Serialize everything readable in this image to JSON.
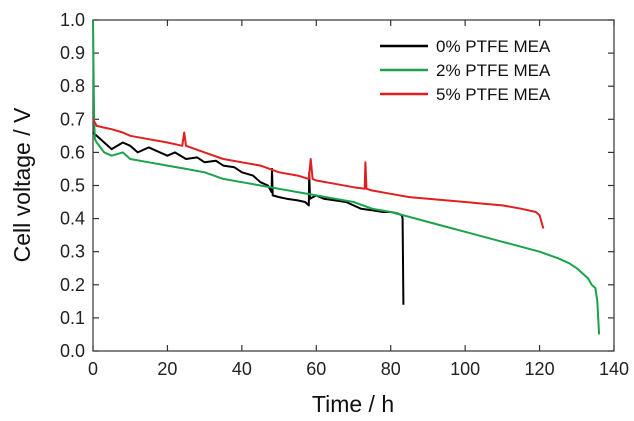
{
  "chart_data": {
    "type": "line",
    "xlabel": "Time / h",
    "ylabel": "Cell voltage / V",
    "xlim": [
      0,
      140
    ],
    "ylim": [
      0.0,
      1.0
    ],
    "x_ticks": [
      "0",
      "20",
      "40",
      "60",
      "80",
      "100",
      "120",
      "140"
    ],
    "y_ticks": [
      "0.0",
      "0.1",
      "0.2",
      "0.3",
      "0.4",
      "0.5",
      "0.6",
      "0.7",
      "0.8",
      "0.9",
      "1.0"
    ],
    "grid": false,
    "legend_position": "top-right",
    "series": [
      {
        "name": "0% PTFE MEA",
        "color": "#000000",
        "x": [
          0,
          1,
          3,
          5,
          8,
          10,
          12,
          15,
          18,
          20,
          22,
          25,
          28,
          30,
          33,
          35,
          38,
          40,
          43,
          45,
          47,
          48,
          48.1,
          48.3,
          50,
          52,
          55,
          57,
          58,
          58.1,
          58.3,
          60,
          62,
          65,
          68,
          70,
          72,
          75,
          78,
          80,
          82,
          83,
          83.2,
          83.4
        ],
        "y": [
          0.66,
          0.65,
          0.63,
          0.61,
          0.63,
          0.62,
          0.6,
          0.615,
          0.6,
          0.59,
          0.6,
          0.58,
          0.585,
          0.57,
          0.575,
          0.56,
          0.555,
          0.54,
          0.53,
          0.51,
          0.5,
          0.48,
          0.55,
          0.47,
          0.465,
          0.46,
          0.455,
          0.45,
          0.44,
          0.54,
          0.46,
          0.47,
          0.46,
          0.455,
          0.45,
          0.44,
          0.43,
          0.425,
          0.42,
          0.42,
          0.415,
          0.41,
          0.4,
          0.14
        ]
      },
      {
        "name": "2% PTFE MEA",
        "color": "#1aa34a",
        "x": [
          0,
          0.3,
          0.5,
          1,
          3,
          5,
          8,
          10,
          15,
          20,
          25,
          30,
          35,
          40,
          45,
          50,
          55,
          60,
          65,
          70,
          75,
          80,
          85,
          90,
          95,
          100,
          105,
          110,
          115,
          120,
          125,
          128,
          130,
          133,
          134,
          135,
          135.5,
          136
        ],
        "y": [
          1.0,
          0.7,
          0.64,
          0.63,
          0.6,
          0.59,
          0.6,
          0.58,
          0.57,
          0.56,
          0.55,
          0.54,
          0.52,
          0.51,
          0.5,
          0.49,
          0.48,
          0.47,
          0.46,
          0.45,
          0.43,
          0.42,
          0.405,
          0.39,
          0.375,
          0.36,
          0.345,
          0.33,
          0.315,
          0.3,
          0.28,
          0.265,
          0.25,
          0.22,
          0.2,
          0.19,
          0.15,
          0.05
        ]
      },
      {
        "name": "5% PTFE MEA",
        "color": "#e02020",
        "x": [
          0,
          0.5,
          1,
          3,
          5,
          8,
          10,
          15,
          20,
          24,
          24.5,
          25,
          30,
          35,
          40,
          45,
          50,
          55,
          58,
          58.5,
          59,
          60,
          65,
          70,
          73,
          73.2,
          73.5,
          75,
          80,
          85,
          90,
          95,
          100,
          105,
          110,
          115,
          119,
          120,
          121
        ],
        "y": [
          0.7,
          0.69,
          0.68,
          0.675,
          0.67,
          0.66,
          0.65,
          0.64,
          0.63,
          0.62,
          0.66,
          0.62,
          0.6,
          0.58,
          0.57,
          0.56,
          0.54,
          0.53,
          0.52,
          0.58,
          0.52,
          0.515,
          0.505,
          0.495,
          0.49,
          0.57,
          0.49,
          0.485,
          0.475,
          0.465,
          0.46,
          0.455,
          0.45,
          0.445,
          0.44,
          0.43,
          0.42,
          0.41,
          0.37
        ]
      }
    ]
  }
}
